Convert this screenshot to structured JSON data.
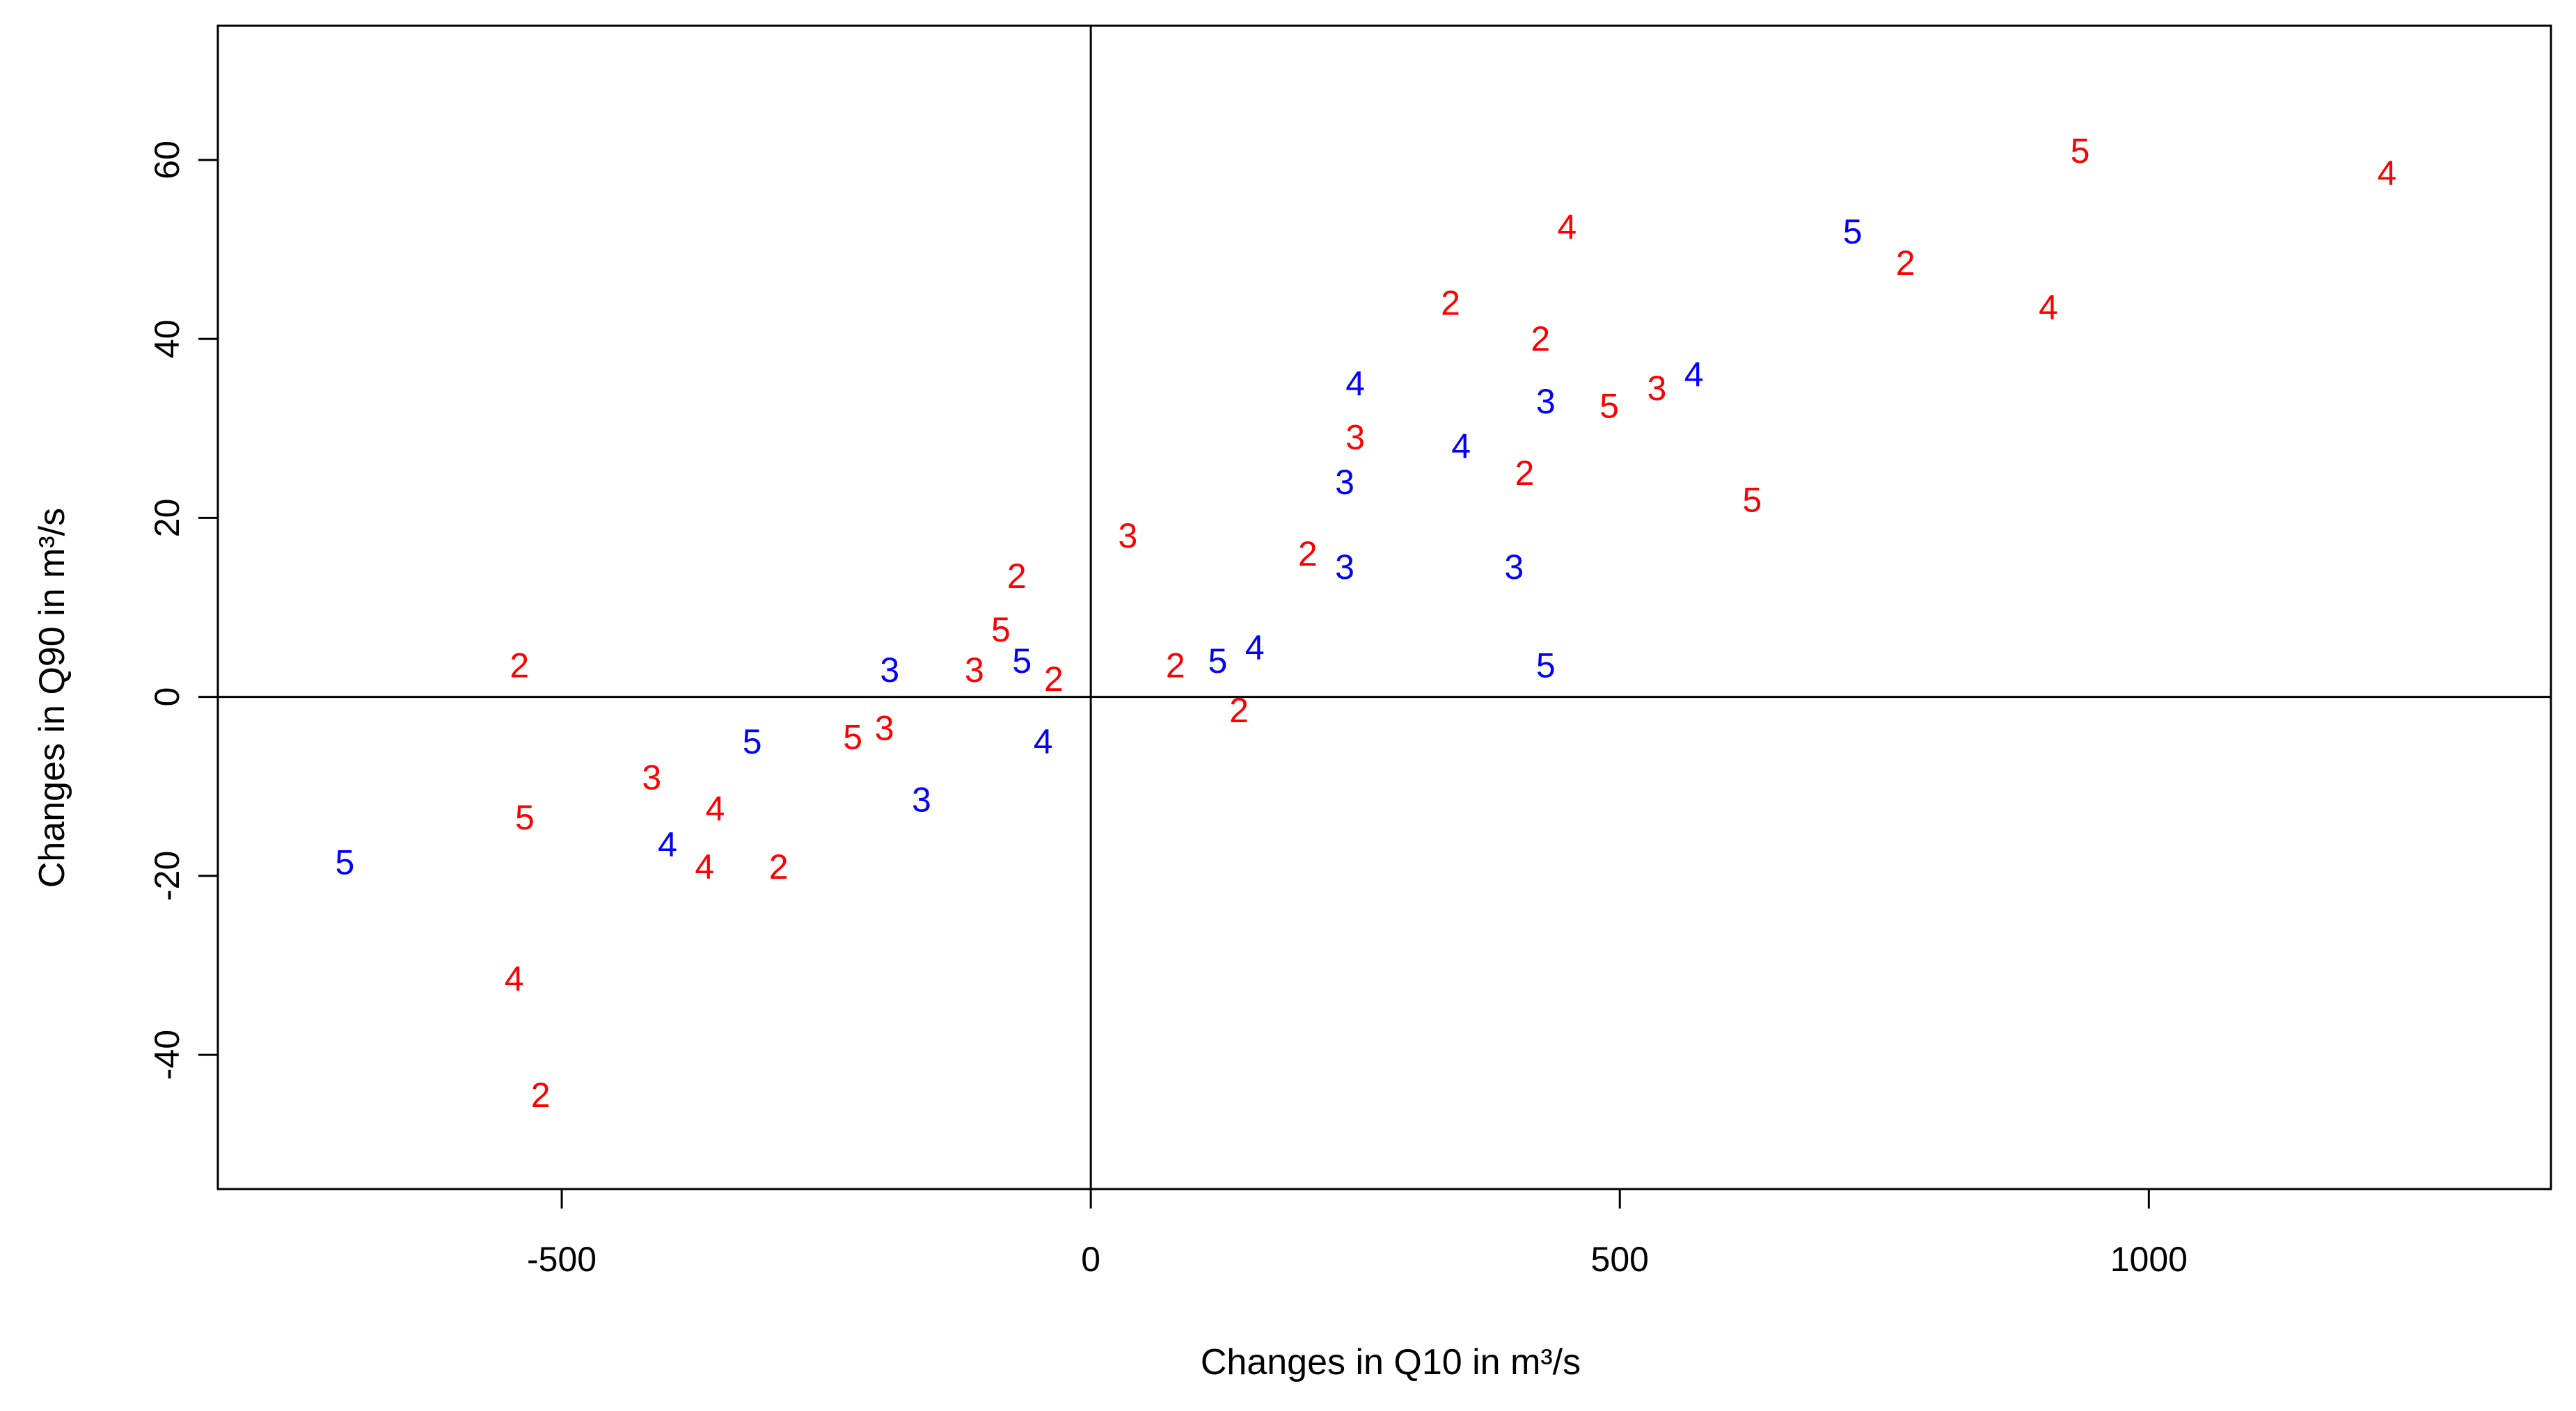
{
  "chart_data": {
    "type": "scatter",
    "title": "",
    "xlabel": "Changes in Q10 in m³/s",
    "ylabel": "Changes in Q90 in m³/s",
    "xlim": [
      -825,
      1380
    ],
    "ylim": [
      -55,
      75
    ],
    "x_ticks": [
      -500,
      0,
      500,
      1000
    ],
    "y_ticks": [
      -40,
      -20,
      0,
      20,
      40,
      60
    ],
    "x_tick_labels": [
      "-500",
      "0",
      "500",
      "1000"
    ],
    "y_tick_labels": [
      "-40",
      "-20",
      "0",
      "20",
      "40",
      "60"
    ],
    "reference_lines": {
      "x": 0,
      "y": 0
    },
    "grid": false,
    "legend": "none",
    "colors": {
      "red": "#ff0000",
      "blue": "#0000ff"
    },
    "points": [
      {
        "x": -540,
        "y": 3.5,
        "label": "2",
        "color": "red"
      },
      {
        "x": -520,
        "y": -44.5,
        "label": "2",
        "color": "red"
      },
      {
        "x": -535,
        "y": -13.5,
        "label": "5",
        "color": "red"
      },
      {
        "x": -545,
        "y": -31.5,
        "label": "4",
        "color": "red"
      },
      {
        "x": -705,
        "y": -18.5,
        "label": "5",
        "color": "blue"
      },
      {
        "x": -415,
        "y": -9,
        "label": "3",
        "color": "red"
      },
      {
        "x": -400,
        "y": -16.5,
        "label": "4",
        "color": "blue"
      },
      {
        "x": -355,
        "y": -12.5,
        "label": "4",
        "color": "red"
      },
      {
        "x": -365,
        "y": -19,
        "label": "4",
        "color": "red"
      },
      {
        "x": -295,
        "y": -19,
        "label": "2",
        "color": "red"
      },
      {
        "x": -320,
        "y": -5,
        "label": "5",
        "color": "blue"
      },
      {
        "x": -225,
        "y": -4.5,
        "label": "5",
        "color": "red"
      },
      {
        "x": -195,
        "y": -3.5,
        "label": "3",
        "color": "red"
      },
      {
        "x": -190,
        "y": 3,
        "label": "3",
        "color": "blue"
      },
      {
        "x": -160,
        "y": -11.5,
        "label": "3",
        "color": "blue"
      },
      {
        "x": -110,
        "y": 3,
        "label": "3",
        "color": "red"
      },
      {
        "x": -85,
        "y": 7.5,
        "label": "5",
        "color": "red"
      },
      {
        "x": -70,
        "y": 13.5,
        "label": "2",
        "color": "red"
      },
      {
        "x": -65,
        "y": 4,
        "label": "5",
        "color": "blue"
      },
      {
        "x": -35,
        "y": 2,
        "label": "2",
        "color": "red"
      },
      {
        "x": -45,
        "y": -5,
        "label": "4",
        "color": "blue"
      },
      {
        "x": 35,
        "y": 18,
        "label": "3",
        "color": "red"
      },
      {
        "x": 80,
        "y": 3.5,
        "label": "2",
        "color": "red"
      },
      {
        "x": 120,
        "y": 4,
        "label": "5",
        "color": "blue"
      },
      {
        "x": 140,
        "y": -1.5,
        "label": "2",
        "color": "red"
      },
      {
        "x": 155,
        "y": 5.5,
        "label": "4",
        "color": "blue"
      },
      {
        "x": 205,
        "y": 16,
        "label": "2",
        "color": "red"
      },
      {
        "x": 240,
        "y": 14.5,
        "label": "3",
        "color": "blue"
      },
      {
        "x": 240,
        "y": 24,
        "label": "3",
        "color": "blue"
      },
      {
        "x": 250,
        "y": 29,
        "label": "3",
        "color": "red"
      },
      {
        "x": 250,
        "y": 35,
        "label": "4",
        "color": "blue"
      },
      {
        "x": 340,
        "y": 44,
        "label": "2",
        "color": "red"
      },
      {
        "x": 350,
        "y": 28,
        "label": "4",
        "color": "blue"
      },
      {
        "x": 400,
        "y": 14.5,
        "label": "3",
        "color": "blue"
      },
      {
        "x": 410,
        "y": 25,
        "label": "2",
        "color": "red"
      },
      {
        "x": 425,
        "y": 40,
        "label": "2",
        "color": "red"
      },
      {
        "x": 430,
        "y": 33,
        "label": "3",
        "color": "blue"
      },
      {
        "x": 430,
        "y": 3.5,
        "label": "5",
        "color": "blue"
      },
      {
        "x": 450,
        "y": 52.5,
        "label": "4",
        "color": "red"
      },
      {
        "x": 490,
        "y": 32.5,
        "label": "5",
        "color": "red"
      },
      {
        "x": 535,
        "y": 34.5,
        "label": "3",
        "color": "red"
      },
      {
        "x": 570,
        "y": 36,
        "label": "4",
        "color": "blue"
      },
      {
        "x": 625,
        "y": 22,
        "label": "5",
        "color": "red"
      },
      {
        "x": 720,
        "y": 52,
        "label": "5",
        "color": "blue"
      },
      {
        "x": 770,
        "y": 48.5,
        "label": "2",
        "color": "red"
      },
      {
        "x": 905,
        "y": 43.5,
        "label": "4",
        "color": "red"
      },
      {
        "x": 935,
        "y": 61,
        "label": "5",
        "color": "red"
      },
      {
        "x": 1225,
        "y": 58.5,
        "label": "4",
        "color": "red"
      }
    ]
  }
}
